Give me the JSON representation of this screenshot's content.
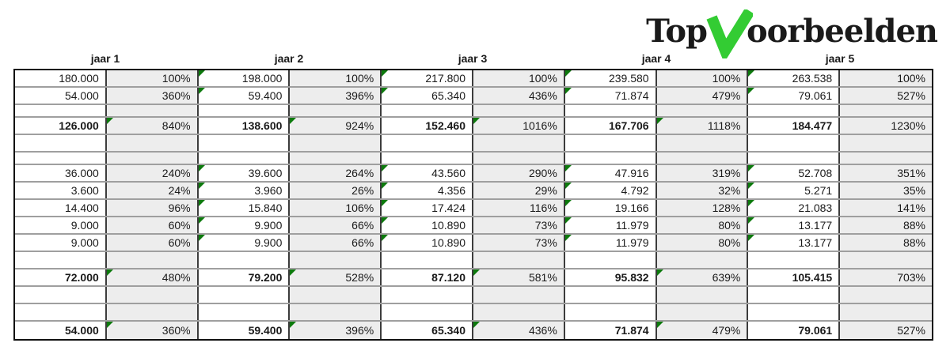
{
  "logo": {
    "prefix": "Top",
    "suffix": "oorbeelden",
    "teal": "#2d9c9c",
    "check_green": "#33cc33"
  },
  "colors": {
    "cell_gray": "#ededed",
    "indicator_green": "#0d7a0d",
    "grid_horizontal": "#9f9f9f",
    "grid_vertical": "#3c3c3c",
    "outer_border": "#111111"
  },
  "table": {
    "year_headers": [
      "jaar 1",
      "jaar 2",
      "jaar 3",
      "jaar 4",
      "jaar 5"
    ],
    "rows": [
      {
        "kind": "data",
        "values": [
          "180.000",
          "198.000",
          "217.800",
          "239.580",
          "263.538"
        ],
        "pcts": [
          "100%",
          "100%",
          "100%",
          "100%",
          "100%"
        ]
      },
      {
        "kind": "data",
        "values": [
          "54.000",
          "59.400",
          "65.340",
          "71.874",
          "79.061"
        ],
        "pcts": [
          "360%",
          "396%",
          "436%",
          "479%",
          "527%"
        ]
      },
      {
        "kind": "spacer-small",
        "values": [
          "",
          "",
          "",
          "",
          ""
        ],
        "pcts": [
          "",
          "",
          "",
          "",
          ""
        ]
      },
      {
        "kind": "total",
        "values": [
          "126.000",
          "138.600",
          "152.460",
          "167.706",
          "184.477"
        ],
        "pcts": [
          "840%",
          "924%",
          "1016%",
          "1118%",
          "1230%"
        ]
      },
      {
        "kind": "spacer",
        "values": [
          "",
          "",
          "",
          "",
          ""
        ],
        "pcts": [
          "",
          "",
          "",
          "",
          ""
        ]
      },
      {
        "kind": "spacer-small",
        "values": [
          "",
          "",
          "",
          "",
          ""
        ],
        "pcts": [
          "",
          "",
          "",
          "",
          ""
        ]
      },
      {
        "kind": "data",
        "values": [
          "36.000",
          "39.600",
          "43.560",
          "47.916",
          "52.708"
        ],
        "pcts": [
          "240%",
          "264%",
          "290%",
          "319%",
          "351%"
        ]
      },
      {
        "kind": "data",
        "values": [
          "3.600",
          "3.960",
          "4.356",
          "4.792",
          "5.271"
        ],
        "pcts": [
          "24%",
          "26%",
          "29%",
          "32%",
          "35%"
        ]
      },
      {
        "kind": "data",
        "values": [
          "14.400",
          "15.840",
          "17.424",
          "19.166",
          "21.083"
        ],
        "pcts": [
          "96%",
          "106%",
          "116%",
          "128%",
          "141%"
        ]
      },
      {
        "kind": "data",
        "values": [
          "9.000",
          "9.900",
          "10.890",
          "11.979",
          "13.177"
        ],
        "pcts": [
          "60%",
          "66%",
          "73%",
          "80%",
          "88%"
        ]
      },
      {
        "kind": "data",
        "values": [
          "9.000",
          "9.900",
          "10.890",
          "11.979",
          "13.177"
        ],
        "pcts": [
          "60%",
          "66%",
          "73%",
          "80%",
          "88%"
        ]
      },
      {
        "kind": "spacer",
        "values": [
          "",
          "",
          "",
          "",
          ""
        ],
        "pcts": [
          "",
          "",
          "",
          "",
          ""
        ]
      },
      {
        "kind": "total",
        "values": [
          "72.000",
          "79.200",
          "87.120",
          "95.832",
          "105.415"
        ],
        "pcts": [
          "480%",
          "528%",
          "581%",
          "639%",
          "703%"
        ]
      },
      {
        "kind": "spacer",
        "values": [
          "",
          "",
          "",
          "",
          ""
        ],
        "pcts": [
          "",
          "",
          "",
          "",
          ""
        ]
      },
      {
        "kind": "spacer",
        "values": [
          "",
          "",
          "",
          "",
          ""
        ],
        "pcts": [
          "",
          "",
          "",
          "",
          ""
        ]
      },
      {
        "kind": "total",
        "values": [
          "54.000",
          "59.400",
          "65.340",
          "71.874",
          "79.061"
        ],
        "pcts": [
          "360%",
          "396%",
          "436%",
          "479%",
          "527%"
        ]
      }
    ]
  }
}
